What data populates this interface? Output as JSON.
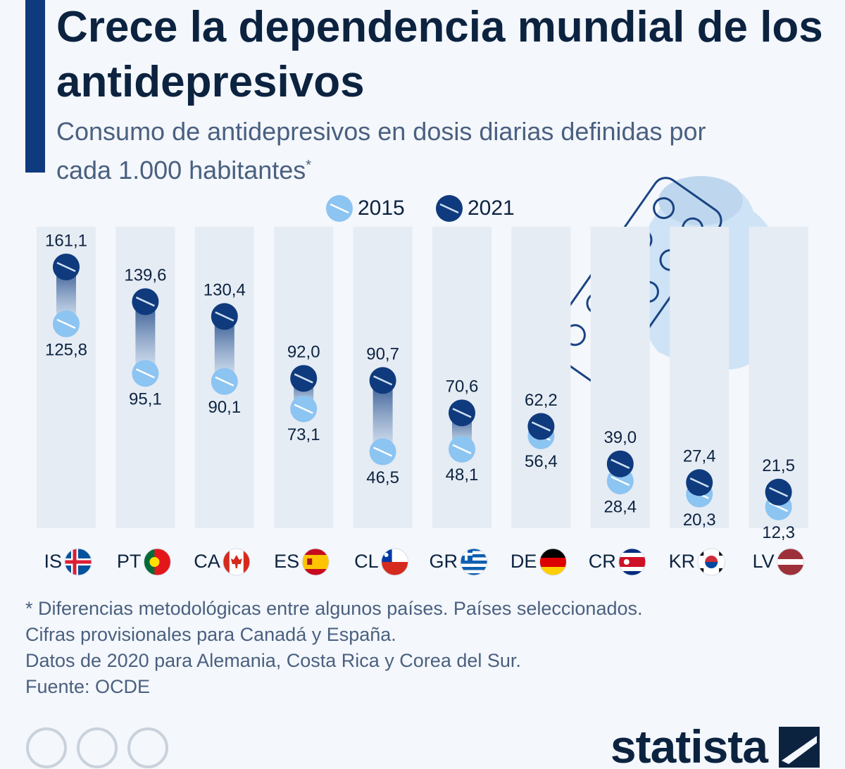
{
  "chart_data": {
    "type": "dumbbell",
    "title": "Crece la dependencia mundial de los antidepresivos",
    "subtitle": "Consumo de antidepresivos en dosis diarias definidas por cada 1.000 habitantes",
    "subtitle_marker": "*",
    "categories": [
      "IS",
      "PT",
      "CA",
      "ES",
      "CL",
      "GR",
      "DE",
      "CR",
      "KR",
      "LV"
    ],
    "series": [
      {
        "name": "2015",
        "color": "#8cc4f2",
        "values": [
          125.8,
          95.1,
          90.1,
          73.1,
          46.5,
          48.1,
          56.4,
          28.4,
          20.3,
          12.3
        ],
        "value_labels": [
          "125,8",
          "95,1",
          "90,1",
          "73,1",
          "46,5",
          "48,1",
          "56,4",
          "28,4",
          "20,3",
          "12,3"
        ]
      },
      {
        "name": "2021",
        "color": "#0f3a7d",
        "values": [
          161.1,
          139.6,
          130.4,
          92.0,
          90.7,
          70.6,
          62.2,
          39.0,
          27.4,
          21.5
        ],
        "value_labels": [
          "161,1",
          "139,6",
          "130,4",
          "92,0",
          "90,7",
          "70,6",
          "62,2",
          "39,0",
          "27,4",
          "21,5"
        ]
      }
    ],
    "notes": [
      "* Diferencias metodológicas entre algunos países. Países seleccionados.",
      "Cifras provisionales para Canadá y España.",
      "Datos de 2020 para Alemania, Costa Rica y Corea del Sur."
    ],
    "source": "Fuente: OCDE",
    "brand": "statista"
  }
}
